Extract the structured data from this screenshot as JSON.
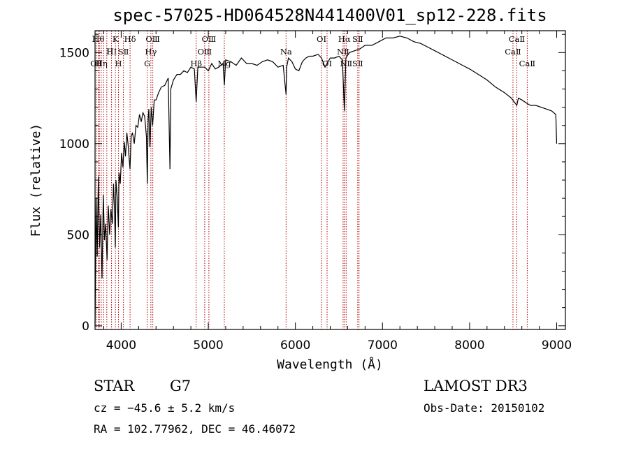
{
  "chart_data": {
    "type": "line",
    "title": "spec-57025-HD064528N441400V01_sp12-228.fits",
    "xlabel": "Wavelength (Å)",
    "ylabel": "Flux (relative)",
    "xlim": [
      3700,
      9100
    ],
    "ylim": [
      -20,
      1620
    ],
    "xticks": [
      4000,
      5000,
      6000,
      7000,
      8000,
      9000
    ],
    "yticks": [
      0,
      500,
      1000,
      1500
    ],
    "series": [
      {
        "name": "spectrum",
        "x": [
          3700,
          3712,
          3725,
          3738,
          3752,
          3765,
          3780,
          3795,
          3808,
          3822,
          3838,
          3852,
          3868,
          3882,
          3898,
          3912,
          3925,
          3933,
          3940,
          3955,
          3968,
          3975,
          3990,
          4005,
          4020,
          4035,
          4050,
          4065,
          4080,
          4101,
          4115,
          4130,
          4150,
          4170,
          4190,
          4210,
          4230,
          4250,
          4270,
          4290,
          4300,
          4310,
          4318,
          4330,
          4345,
          4361,
          4380,
          4400,
          4430,
          4460,
          4500,
          4540,
          4560,
          4570,
          4600,
          4640,
          4680,
          4720,
          4760,
          4800,
          4840,
          4861,
          4880,
          4920,
          4960,
          5000,
          5040,
          5080,
          5120,
          5170,
          5184,
          5200,
          5260,
          5320,
          5380,
          5440,
          5500,
          5560,
          5620,
          5680,
          5740,
          5800,
          5860,
          5893,
          5900,
          5920,
          5960,
          6000,
          6040,
          6080,
          6120,
          6160,
          6200,
          6260,
          6300,
          6340,
          6400,
          6450,
          6500,
          6540,
          6563,
          6580,
          6620,
          6680,
          6740,
          6800,
          6880,
          6960,
          7040,
          7120,
          7200,
          7280,
          7360,
          7440,
          7520,
          7600,
          7680,
          7760,
          7840,
          7920,
          8000,
          8100,
          8200,
          8300,
          8400,
          8480,
          8542,
          8560,
          8600,
          8662,
          8700,
          8760,
          8820,
          8880,
          8940,
          8990,
          9000
        ],
        "y": [
          0,
          700,
          380,
          820,
          430,
          610,
          260,
          720,
          470,
          560,
          360,
          660,
          500,
          640,
          560,
          780,
          620,
          430,
          800,
          700,
          540,
          840,
          780,
          950,
          870,
          1010,
          930,
          1060,
          990,
          860,
          1040,
          1060,
          1000,
          1100,
          1090,
          1160,
          1120,
          1170,
          1150,
          1040,
          780,
          1140,
          1190,
          980,
          1200,
          1100,
          1240,
          1240,
          1280,
          1310,
          1320,
          1360,
          860,
          1300,
          1350,
          1380,
          1380,
          1400,
          1390,
          1420,
          1410,
          1230,
          1420,
          1420,
          1420,
          1400,
          1440,
          1410,
          1420,
          1440,
          1320,
          1460,
          1450,
          1430,
          1470,
          1440,
          1440,
          1430,
          1450,
          1460,
          1450,
          1420,
          1430,
          1270,
          1420,
          1470,
          1450,
          1410,
          1400,
          1450,
          1470,
          1480,
          1480,
          1490,
          1470,
          1420,
          1470,
          1470,
          1480,
          1460,
          1180,
          1470,
          1500,
          1510,
          1520,
          1540,
          1540,
          1560,
          1580,
          1580,
          1590,
          1580,
          1560,
          1550,
          1530,
          1510,
          1490,
          1470,
          1450,
          1430,
          1410,
          1380,
          1350,
          1310,
          1280,
          1250,
          1210,
          1250,
          1240,
          1220,
          1210,
          1210,
          1200,
          1190,
          1180,
          1160,
          1000
        ]
      }
    ],
    "line_marks": [
      {
        "wl": 3714,
        "labels": [
          {
            "text": "OⅡ",
            "row": 2
          }
        ]
      },
      {
        "wl": 3736,
        "labels": [
          {
            "text": "ℍθ",
            "row": 0
          }
        ]
      },
      {
        "wl": 3750,
        "labels": []
      },
      {
        "wl": 3771,
        "labels": [
          {
            "text": "ℍη",
            "row": 2
          }
        ]
      },
      {
        "wl": 3798,
        "labels": []
      },
      {
        "wl": 3835,
        "labels": []
      },
      {
        "wl": 3889,
        "labels": [
          {
            "text": "ℍΙ",
            "row": 1
          }
        ]
      },
      {
        "wl": 3934,
        "labels": [
          {
            "text": "K",
            "row": 0
          }
        ]
      },
      {
        "wl": 3969,
        "labels": [
          {
            "text": "H",
            "row": 2
          }
        ]
      },
      {
        "wl": 4026,
        "labels": [
          {
            "text": "SⅡ",
            "row": 1
          }
        ]
      },
      {
        "wl": 4102,
        "labels": [
          {
            "text": "Hδ",
            "row": 0
          }
        ]
      },
      {
        "wl": 4300,
        "labels": [
          {
            "text": "G",
            "row": 2
          }
        ]
      },
      {
        "wl": 4341,
        "labels": [
          {
            "text": "Hγ",
            "row": 1
          }
        ]
      },
      {
        "wl": 4363,
        "labels": [
          {
            "text": "OⅢ",
            "row": 0
          }
        ]
      },
      {
        "wl": 4861,
        "labels": [
          {
            "text": "Hβ",
            "row": 2
          }
        ]
      },
      {
        "wl": 4959,
        "labels": [
          {
            "text": "OⅢ",
            "row": 1
          }
        ]
      },
      {
        "wl": 5007,
        "labels": [
          {
            "text": "OⅢ",
            "row": 0
          }
        ]
      },
      {
        "wl": 5184,
        "labels": [
          {
            "text": "Mg",
            "row": 2
          }
        ]
      },
      {
        "wl": 5893,
        "labels": [
          {
            "text": "Na",
            "row": 1
          }
        ]
      },
      {
        "wl": 6300,
        "labels": [
          {
            "text": "OⅠ",
            "row": 0
          }
        ]
      },
      {
        "wl": 6364,
        "labels": [
          {
            "text": "OⅠ",
            "row": 2
          }
        ]
      },
      {
        "wl": 6548,
        "labels": [
          {
            "text": "NⅡ",
            "row": 1
          }
        ]
      },
      {
        "wl": 6563,
        "labels": [
          {
            "text": "Hα",
            "row": 0
          }
        ]
      },
      {
        "wl": 6583,
        "labels": [
          {
            "text": "NⅡ",
            "row": 2
          }
        ]
      },
      {
        "wl": 6716,
        "labels": [
          {
            "text": "SⅡ",
            "row": 0
          },
          {
            "text": "SⅡ",
            "row": 2
          }
        ]
      },
      {
        "wl": 6731,
        "labels": []
      },
      {
        "wl": 8498,
        "labels": [
          {
            "text": "CaⅡ",
            "row": 1
          }
        ]
      },
      {
        "wl": 8542,
        "labels": [
          {
            "text": "CaⅡ",
            "row": 0
          }
        ]
      },
      {
        "wl": 8662,
        "labels": [
          {
            "text": "CaⅡ",
            "row": 2
          }
        ]
      }
    ]
  },
  "info": {
    "object_class": "STAR",
    "subclass": "G7",
    "survey": "LAMOST DR3",
    "cz": "cz = −45.6 ± 5.2 km/s",
    "obs_date": "Obs-Date: 20150102",
    "coords": "RA = 102.77962, DEC =  46.46072"
  },
  "colors": {
    "line_marks": "#b00000",
    "spectrum": "#000000"
  }
}
